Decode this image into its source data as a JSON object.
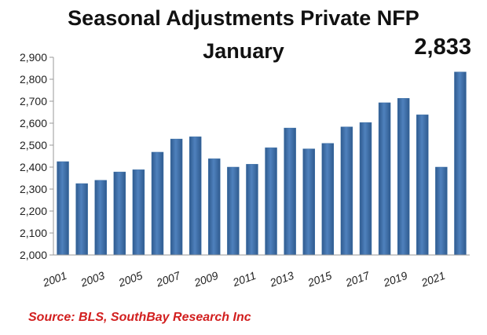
{
  "header": {
    "title_line1": "Seasonal Adjustments Private NFP",
    "title_line2": "January",
    "callout": "2,833"
  },
  "source": "Source: BLS, SouthBay Research Inc",
  "colors": {
    "bar": "#4f81bd",
    "bar_dark": "#2f5b8f",
    "source_text": "#d21f1f"
  },
  "chart_data": {
    "type": "bar",
    "title": "Seasonal Adjustments Private NFP January",
    "categories": [
      "2001",
      "2002",
      "2003",
      "2004",
      "2005",
      "2006",
      "2007",
      "2008",
      "2009",
      "2010",
      "2011",
      "2012",
      "2013",
      "2014",
      "2015",
      "2016",
      "2017",
      "2018",
      "2019",
      "2020",
      "2021",
      "2022"
    ],
    "x_tick_labels": [
      "2001",
      "2003",
      "2005",
      "2007",
      "2009",
      "2011",
      "2013",
      "2015",
      "2017",
      "2019",
      "2021"
    ],
    "values": [
      2425,
      2325,
      2340,
      2378,
      2388,
      2468,
      2528,
      2538,
      2438,
      2400,
      2413,
      2488,
      2578,
      2483,
      2508,
      2583,
      2603,
      2693,
      2713,
      2638,
      2400,
      2833
    ],
    "ylim": [
      2000,
      2900
    ],
    "y_ticks": [
      "2,000",
      "2,100",
      "2,200",
      "2,300",
      "2,400",
      "2,500",
      "2,600",
      "2,700",
      "2,800",
      "2,900"
    ],
    "annotations": [
      {
        "category": "2022",
        "label": "2,833"
      }
    ],
    "grid": false,
    "legend": "none"
  }
}
